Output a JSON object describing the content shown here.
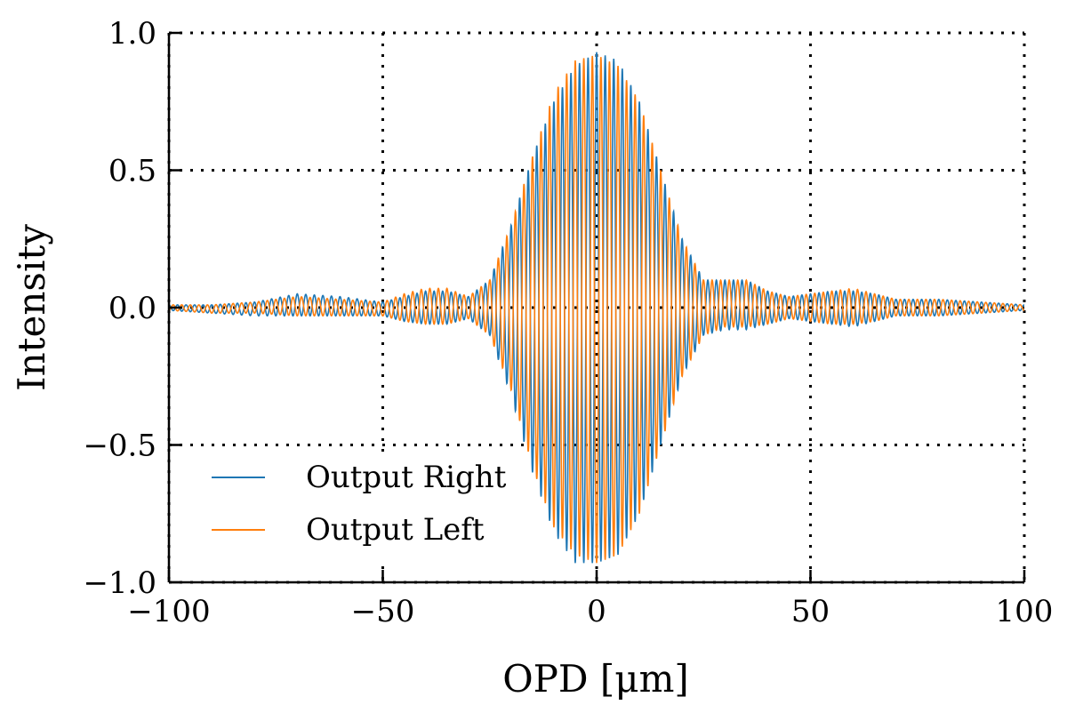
{
  "chart_data": {
    "type": "line",
    "title": "",
    "xlabel": "OPD [μm]",
    "ylabel": "Intensity",
    "xlim": [
      -100,
      100
    ],
    "ylim": [
      -1.0,
      1.0
    ],
    "xticks": [
      -100,
      -50,
      0,
      50,
      100
    ],
    "xtick_labels": [
      "−100",
      "−50",
      "0",
      "50",
      "100"
    ],
    "yticks": [
      -1.0,
      -0.5,
      0.0,
      0.5,
      1.0
    ],
    "ytick_labels": [
      "−1.0",
      "−0.5",
      "0.0",
      "0.5",
      "1.0"
    ],
    "grid": true,
    "grid_style": "dotted",
    "legend_position": "lower-left",
    "series": [
      {
        "name": "Output Right",
        "color": "#1f77b4",
        "x": [
          -100,
          -90,
          -80,
          -70,
          -60,
          -50,
          -45,
          -40,
          -35,
          -30,
          -25,
          -20,
          -15,
          -10,
          -5,
          0,
          5,
          10,
          15,
          20,
          25,
          30,
          35,
          40,
          45,
          50,
          55,
          60,
          65,
          70,
          80,
          90,
          100
        ],
        "upper": [
          0.01,
          0.01,
          0.02,
          0.05,
          0.04,
          0.02,
          0.04,
          0.06,
          0.06,
          0.04,
          0.1,
          0.3,
          0.55,
          0.75,
          0.88,
          0.93,
          0.9,
          0.75,
          0.5,
          0.25,
          0.1,
          0.1,
          0.1,
          0.06,
          0.04,
          0.05,
          0.06,
          0.06,
          0.05,
          0.03,
          0.03,
          0.02,
          0.01
        ],
        "lower": [
          -0.01,
          -0.02,
          -0.03,
          -0.03,
          -0.03,
          -0.03,
          -0.05,
          -0.06,
          -0.06,
          -0.04,
          -0.1,
          -0.32,
          -0.6,
          -0.82,
          -0.93,
          -0.93,
          -0.9,
          -0.75,
          -0.5,
          -0.25,
          -0.1,
          -0.08,
          -0.08,
          -0.06,
          -0.04,
          -0.05,
          -0.06,
          -0.07,
          -0.05,
          -0.03,
          -0.03,
          -0.02,
          -0.01
        ],
        "fringe_period_um": 2.0
      },
      {
        "name": "Output Left",
        "color": "#ff7f0e",
        "x": [
          -100,
          -90,
          -80,
          -70,
          -60,
          -50,
          -45,
          -40,
          -35,
          -30,
          -25,
          -20,
          -15,
          -10,
          -5,
          0,
          5,
          10,
          15,
          20,
          25,
          30,
          35,
          40,
          45,
          50,
          55,
          60,
          65,
          70,
          80,
          90,
          100
        ],
        "upper": [
          0.01,
          0.01,
          0.02,
          0.04,
          0.03,
          0.02,
          0.05,
          0.07,
          0.07,
          0.04,
          0.1,
          0.3,
          0.55,
          0.78,
          0.9,
          0.92,
          0.88,
          0.75,
          0.5,
          0.25,
          0.1,
          0.1,
          0.1,
          0.06,
          0.04,
          0.05,
          0.06,
          0.07,
          0.05,
          0.03,
          0.03,
          0.02,
          0.01
        ],
        "lower": [
          -0.01,
          -0.02,
          -0.02,
          -0.03,
          -0.03,
          -0.03,
          -0.05,
          -0.06,
          -0.06,
          -0.04,
          -0.1,
          -0.3,
          -0.58,
          -0.8,
          -0.9,
          -0.93,
          -0.9,
          -0.75,
          -0.5,
          -0.25,
          -0.1,
          -0.07,
          -0.07,
          -0.06,
          -0.04,
          -0.05,
          -0.06,
          -0.06,
          -0.05,
          -0.03,
          -0.03,
          -0.02,
          -0.01
        ],
        "fringe_period_um": 2.0,
        "phase_offset_rad": 3.14159
      }
    ]
  }
}
